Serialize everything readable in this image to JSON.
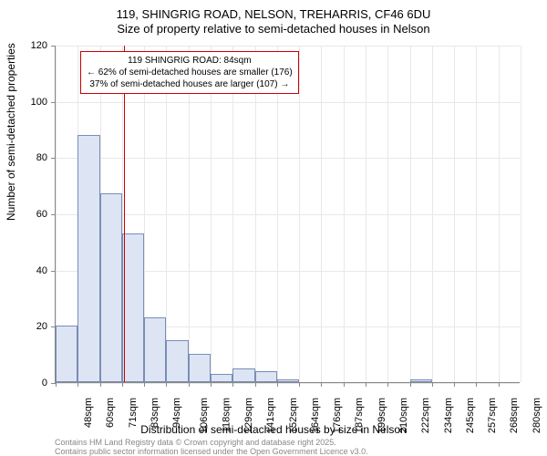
{
  "chart": {
    "type": "histogram",
    "title_line1": "119, SHINGRIG ROAD, NELSON, TREHARRIS, CF46 6DU",
    "title_line2": "Size of property relative to semi-detached houses in Nelson",
    "y_axis_label": "Number of semi-detached properties",
    "x_axis_label": "Distribution of semi-detached houses by size in Nelson",
    "ylim": [
      0,
      120
    ],
    "y_ticks": [
      0,
      20,
      40,
      60,
      80,
      100,
      120
    ],
    "x_categories": [
      "48sqm",
      "60sqm",
      "71sqm",
      "83sqm",
      "94sqm",
      "106sqm",
      "118sqm",
      "129sqm",
      "141sqm",
      "152sqm",
      "164sqm",
      "176sqm",
      "187sqm",
      "199sqm",
      "210sqm",
      "222sqm",
      "234sqm",
      "245sqm",
      "257sqm",
      "268sqm",
      "280sqm"
    ],
    "values": [
      20,
      88,
      67,
      53,
      23,
      15,
      10,
      3,
      5,
      4,
      1,
      0,
      0,
      0,
      0,
      0,
      1,
      0,
      0,
      0,
      0
    ],
    "bar_fill": "#dde5f4",
    "bar_stroke": "#7a8db5",
    "background_color": "#ffffff",
    "grid_color": "#e8e8e8",
    "reference_line_index": 3.1,
    "reference_color": "#cc0000",
    "annotation": {
      "line1": "119 SHINGRIG ROAD: 84sqm",
      "line2": "← 62% of semi-detached houses are smaller (176)",
      "line3": "37% of semi-detached houses are larger (107) →"
    },
    "footer_line1": "Contains HM Land Registry data © Crown copyright and database right 2025.",
    "footer_line2": "Contains public sector information licensed under the Open Government Licence v3.0."
  }
}
